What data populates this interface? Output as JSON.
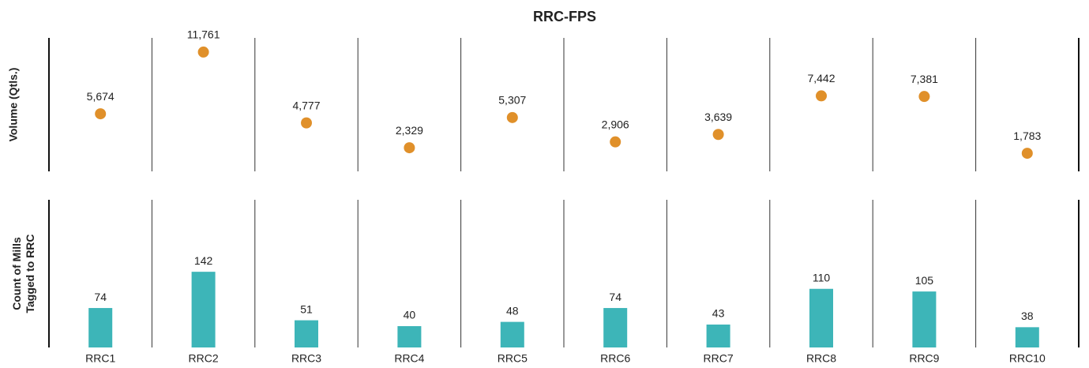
{
  "chart_data": {
    "title": "RRC-FPS",
    "categories": [
      "RRC1",
      "RRC2",
      "RRC3",
      "RRC4",
      "RRC5",
      "RRC6",
      "RRC7",
      "RRC8",
      "RRC9",
      "RRC10"
    ],
    "panels": [
      {
        "type": "dot",
        "y_label": [
          "Volume (Qtls.)"
        ],
        "color": "#e0902a",
        "values": [
          5674,
          11761,
          4777,
          2329,
          5307,
          2906,
          3639,
          7442,
          7381,
          1783
        ],
        "value_labels": [
          "5,674",
          "11,761",
          "4,777",
          "2,329",
          "5,307",
          "2,906",
          "3,639",
          "7,442",
          "7,381",
          "1,783"
        ],
        "ylim": [
          0,
          13000
        ]
      },
      {
        "type": "bar",
        "y_label": [
          "Count of Mills",
          "Tagged to RRC"
        ],
        "color": "#3db5b8",
        "values": [
          74,
          142,
          51,
          40,
          48,
          74,
          43,
          110,
          105,
          38
        ],
        "ylim": [
          0,
          280
        ]
      }
    ]
  }
}
